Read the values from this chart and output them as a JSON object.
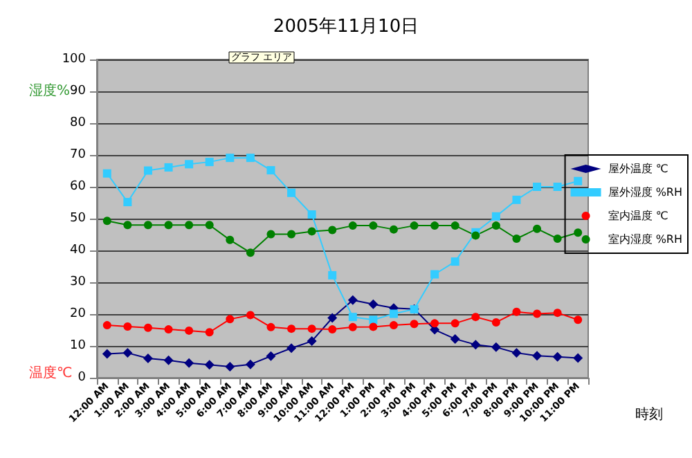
{
  "chart_data": {
    "type": "line",
    "title": "2005年11月10日",
    "xlabel": "時刻",
    "ylabel": "湿度%",
    "annotations": [
      "グラフ エリア",
      "温度℃"
    ],
    "categories": [
      "12:00 AM",
      "1:00 AM",
      "2:00 AM",
      "3:00 AM",
      "4:00 AM",
      "5:00 AM",
      "6:00 AM",
      "7:00 AM",
      "8:00 AM",
      "9:00 AM",
      "10:00 AM",
      "11:00 AM",
      "12:00 PM",
      "1:00 PM",
      "2:00 PM",
      "3:00 PM",
      "4:00 PM",
      "5:00 PM",
      "6:00 PM",
      "7:00 PM",
      "8:00 PM",
      "9:00 PM",
      "10:00 PM",
      "11:00 PM"
    ],
    "series": [
      {
        "name": "屋外温度 ℃",
        "color": "#000080",
        "marker": "diamond",
        "values": [
          7.5,
          7.8,
          6.1,
          5.5,
          4.6,
          4.1,
          3.5,
          4.2,
          6.8,
          9.3,
          11.5,
          18.8,
          24.4,
          23.1,
          21.9,
          21.6,
          15.1,
          12.2,
          10.4,
          9.6,
          7.8,
          6.9,
          6.6,
          6.2
        ]
      },
      {
        "name": "屋外湿度 %RH",
        "color": "#33ccff",
        "marker": "square",
        "values": [
          64.2,
          55.2,
          65.1,
          66.1,
          67.1,
          67.8,
          69.1,
          69.1,
          65.2,
          58.1,
          51.3,
          32.2,
          19.1,
          18.2,
          20.1,
          21.5,
          32.5,
          36.5,
          45.7,
          50.7,
          55.9,
          60,
          60,
          61.8
        ]
      },
      {
        "name": "室内温度 ℃",
        "color": "#ff0000",
        "marker": "circle",
        "values": [
          16.5,
          16.1,
          15.7,
          15.2,
          14.8,
          14.3,
          18.4,
          19.7,
          15.9,
          15.4,
          15.4,
          15.2,
          15.9,
          16,
          16.5,
          16.9,
          17.1,
          17.1,
          19.1,
          17.4,
          20.7,
          20.1,
          20.4,
          18.2
        ]
      },
      {
        "name": "室内湿度 %RH",
        "color": "#008000",
        "marker": "circle",
        "values": [
          49.3,
          48,
          48,
          48,
          48,
          48,
          43.3,
          39.3,
          45.1,
          45.1,
          46,
          46.4,
          47.8,
          47.8,
          46.6,
          47.8,
          47.8,
          47.8,
          44.7,
          47.8,
          43.7,
          46.8,
          43.7,
          45.6
        ]
      }
    ],
    "ylim": [
      0,
      100
    ],
    "yticks": [
      0,
      10,
      20,
      30,
      40,
      50,
      60,
      70,
      80,
      90,
      100
    ],
    "grid": "y",
    "legend": "right"
  }
}
